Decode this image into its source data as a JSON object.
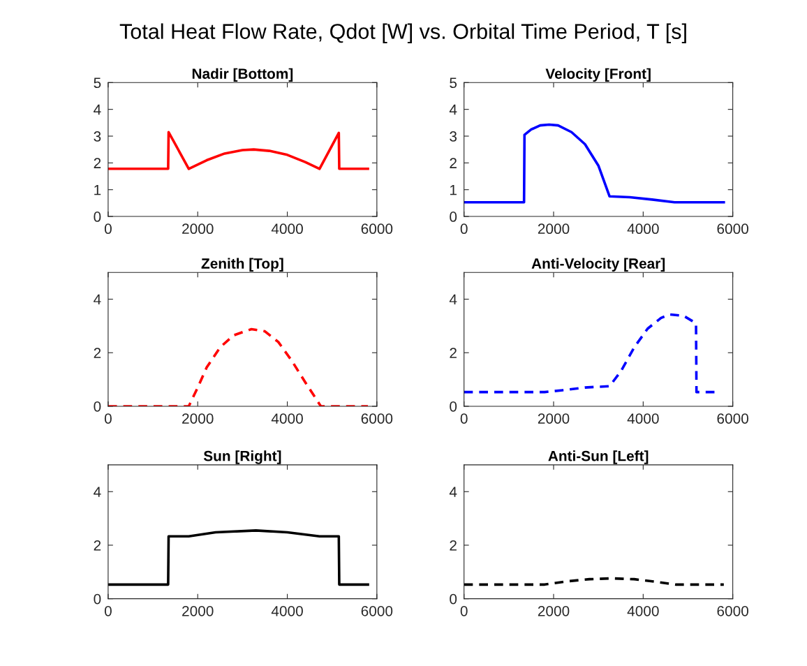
{
  "chart_data": [
    {
      "type": "line",
      "title": "Nadir [Bottom]",
      "annotations": [
        "Total Heat Flow Rate, Qdot [W] vs. Orbital Time Period, T [s]"
      ],
      "xlim": [
        0,
        6000
      ],
      "xticks": [
        0,
        2000,
        4000,
        6000
      ],
      "ylim": [
        0,
        5
      ],
      "yticks": [
        0,
        1,
        2,
        3,
        4,
        5
      ],
      "line_style": "solid",
      "marker": "none",
      "grid": false,
      "series": [
        {
          "color": "#ff0000",
          "x": [
            0,
            1340,
            1350,
            1800,
            2200,
            2600,
            3000,
            3250,
            3600,
            4000,
            4400,
            4720,
            5150,
            5160,
            5800
          ],
          "values": [
            1.78,
            1.78,
            3.15,
            1.78,
            2.1,
            2.35,
            2.48,
            2.5,
            2.45,
            2.3,
            2.03,
            1.78,
            3.12,
            1.78,
            1.78
          ]
        }
      ]
    },
    {
      "type": "line",
      "title": "Velocity [Front]",
      "xlim": [
        0,
        6000
      ],
      "xticks": [
        0,
        2000,
        4000,
        6000
      ],
      "ylim": [
        0,
        5
      ],
      "yticks": [
        0,
        1,
        2,
        3,
        4,
        5
      ],
      "line_style": "solid",
      "marker": "none",
      "grid": false,
      "series": [
        {
          "color": "#0000ff",
          "x": [
            0,
            1340,
            1350,
            1500,
            1700,
            1900,
            2100,
            2400,
            2700,
            3000,
            3250,
            3700,
            4200,
            4700,
            5800
          ],
          "values": [
            0.53,
            0.53,
            3.05,
            3.25,
            3.4,
            3.43,
            3.4,
            3.15,
            2.7,
            1.9,
            0.75,
            0.72,
            0.63,
            0.53,
            0.53
          ]
        }
      ]
    },
    {
      "type": "line",
      "title": "Zenith [Top]",
      "xlim": [
        0,
        6000
      ],
      "xticks": [
        0,
        2000,
        4000,
        6000
      ],
      "ylim": [
        0,
        5
      ],
      "yticks": [
        0,
        2,
        4
      ],
      "line_style": "dashed",
      "marker": "none",
      "grid": false,
      "series": [
        {
          "color": "#ff0000",
          "x": [
            0,
            1800,
            2000,
            2200,
            2500,
            2800,
            3200,
            3500,
            3800,
            4100,
            4400,
            4750,
            5800
          ],
          "values": [
            0,
            0,
            0.7,
            1.45,
            2.2,
            2.65,
            2.88,
            2.8,
            2.4,
            1.7,
            0.9,
            0,
            0
          ]
        }
      ]
    },
    {
      "type": "line",
      "title": "Anti-Velocity [Rear]",
      "xlim": [
        0,
        6000
      ],
      "xticks": [
        0,
        2000,
        4000,
        6000
      ],
      "ylim": [
        0,
        5
      ],
      "yticks": [
        0,
        2,
        4
      ],
      "line_style": "dashed",
      "marker": "none",
      "grid": false,
      "series": [
        {
          "color": "#0000ff",
          "x": [
            0,
            1800,
            2200,
            2700,
            3250,
            3500,
            3800,
            4100,
            4400,
            4600,
            4900,
            5180,
            5190,
            5630
          ],
          "values": [
            0.53,
            0.53,
            0.6,
            0.7,
            0.75,
            1.3,
            2.2,
            2.9,
            3.3,
            3.43,
            3.38,
            3.1,
            0.53,
            0.53
          ]
        }
      ]
    },
    {
      "type": "line",
      "title": "Sun [Right]",
      "xlim": [
        0,
        6000
      ],
      "xticks": [
        0,
        2000,
        4000,
        6000
      ],
      "ylim": [
        0,
        5
      ],
      "yticks": [
        0,
        2,
        4
      ],
      "line_style": "solid",
      "marker": "none",
      "grid": false,
      "series": [
        {
          "color": "#000000",
          "x": [
            0,
            1340,
            1350,
            1800,
            2400,
            3300,
            4000,
            4720,
            5150,
            5160,
            5800
          ],
          "values": [
            0.53,
            0.53,
            2.33,
            2.33,
            2.48,
            2.55,
            2.48,
            2.33,
            2.33,
            0.53,
            0.53
          ]
        }
      ]
    },
    {
      "type": "line",
      "title": "Anti-Sun [Left]",
      "xlim": [
        0,
        6000
      ],
      "xticks": [
        0,
        2000,
        4000,
        6000
      ],
      "ylim": [
        0,
        5
      ],
      "yticks": [
        0,
        2,
        4
      ],
      "line_style": "dashed",
      "marker": "none",
      "grid": false,
      "series": [
        {
          "color": "#000000",
          "x": [
            0,
            1800,
            2300,
            2800,
            3300,
            3800,
            4300,
            4720,
            5800
          ],
          "values": [
            0.53,
            0.53,
            0.65,
            0.73,
            0.76,
            0.73,
            0.63,
            0.53,
            0.53
          ]
        }
      ]
    }
  ]
}
